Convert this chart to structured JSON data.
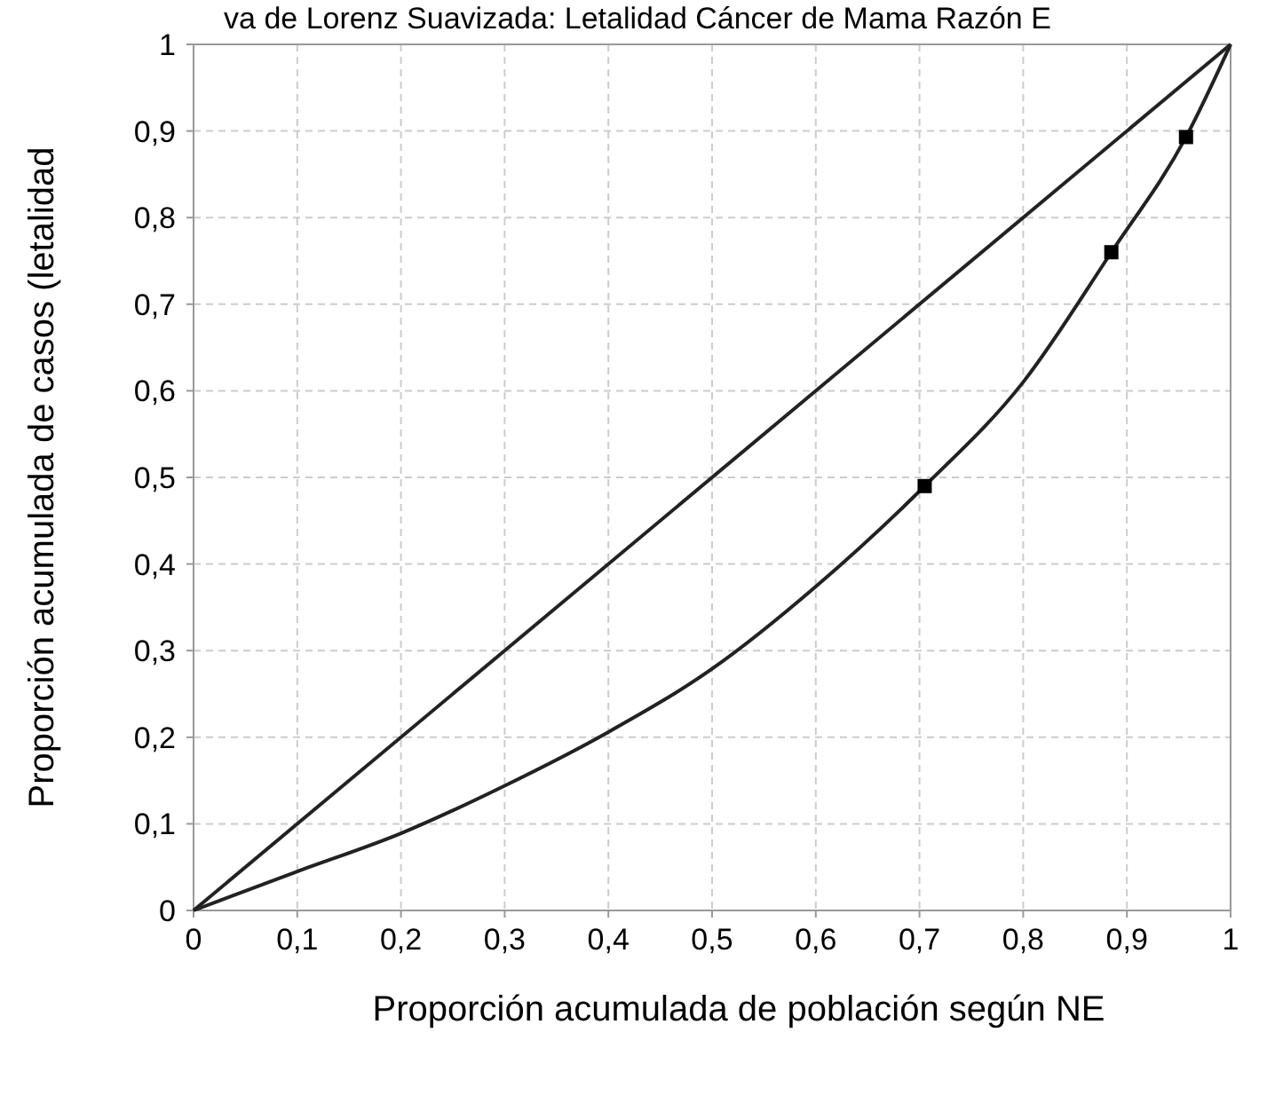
{
  "chart_data": {
    "type": "line",
    "title": "va de Lorenz Suavizada: Letalidad Cáncer de Mama Razón E",
    "xlabel": "Proporción acumulada de población según NE",
    "ylabel": "Proporción acumulada de casos (letalidad",
    "xlim": [
      0,
      1
    ],
    "ylim": [
      0,
      1
    ],
    "xticks": [
      0,
      {
        "value": 0.1,
        "label": "0,1"
      },
      {
        "value": 0.2,
        "label": "0,2"
      },
      {
        "value": 0.3,
        "label": "0,3"
      },
      {
        "value": 0.4,
        "label": "0,4"
      },
      {
        "value": 0.5,
        "label": "0,5"
      },
      {
        "value": 0.6,
        "label": "0,6"
      },
      {
        "value": 0.7,
        "label": "0,7"
      },
      {
        "value": 0.8,
        "label": "0,8"
      },
      {
        "value": 0.9,
        "label": "0,9"
      },
      1
    ],
    "yticks": [
      0,
      {
        "value": 0.1,
        "label": "0,1"
      },
      {
        "value": 0.2,
        "label": "0,2"
      },
      {
        "value": 0.3,
        "label": "0,3"
      },
      {
        "value": 0.4,
        "label": "0,4"
      },
      {
        "value": 0.5,
        "label": "0,5"
      },
      {
        "value": 0.6,
        "label": "0,6"
      },
      {
        "value": 0.7,
        "label": "0,7"
      },
      {
        "value": 0.8,
        "label": "0,8"
      },
      {
        "value": 0.9,
        "label": "0,9"
      },
      1
    ],
    "grid": true,
    "line_style": "solid",
    "series": [
      {
        "color": "#222222",
        "x": [
          0,
          1
        ],
        "values": [
          0,
          1
        ],
        "marker": "none"
      },
      {
        "color": "#222222",
        "x": [
          0,
          0.1,
          0.2,
          0.3,
          0.4,
          0.5,
          0.6,
          0.705,
          0.8,
          0.885,
          0.957,
          1
        ],
        "values": [
          0,
          0.045,
          0.089,
          0.144,
          0.206,
          0.279,
          0.374,
          0.49,
          0.61,
          0.76,
          0.893,
          1
        ],
        "marker": "none"
      },
      {
        "type": "scatter",
        "color": "#000000",
        "x": [
          0.705,
          0.885,
          0.957
        ],
        "values": [
          0.49,
          0.76,
          0.893
        ],
        "marker": "square"
      }
    ]
  }
}
